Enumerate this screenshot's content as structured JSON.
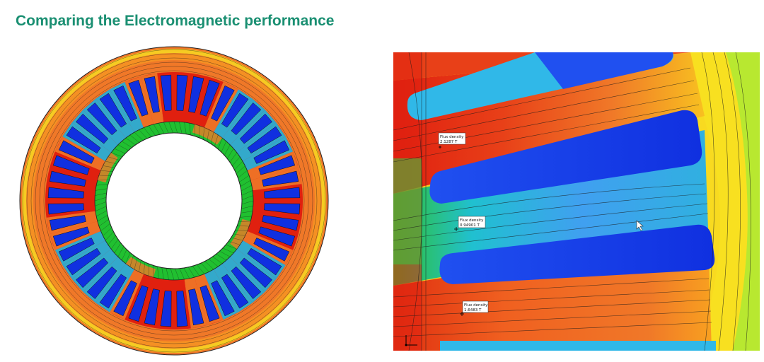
{
  "slide": {
    "title": "Comparing the Electromagnetic performance"
  },
  "ring_view": {
    "slot_count": 48
  },
  "zoom_view": {
    "probes": [
      {
        "label": "Flux density",
        "value": "2.1287 T"
      },
      {
        "label": "Flux density",
        "value": "0.94901 T"
      },
      {
        "label": "Flux density",
        "value": "1.6483 T"
      }
    ]
  },
  "colors": {
    "title": "#1a8f72",
    "high": "#e02010",
    "mid_high": "#f07828",
    "mid": "#f8e020",
    "mid_low": "#20c030",
    "low": "#20b8e0",
    "min": "#1030e0"
  }
}
